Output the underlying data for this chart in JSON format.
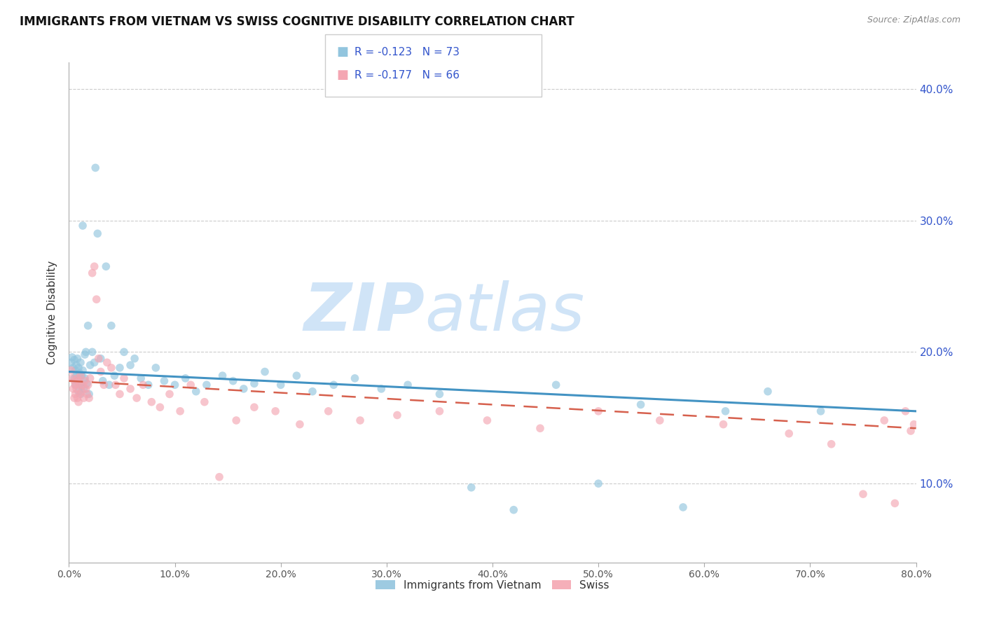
{
  "title": "IMMIGRANTS FROM VIETNAM VS SWISS COGNITIVE DISABILITY CORRELATION CHART",
  "source_text": "Source: ZipAtlas.com",
  "ylabel_left": "Cognitive Disability",
  "xlim": [
    0.0,
    0.8
  ],
  "ylim": [
    0.04,
    0.42
  ],
  "xticks": [
    0.0,
    0.1,
    0.2,
    0.3,
    0.4,
    0.5,
    0.6,
    0.7,
    0.8
  ],
  "yticks": [
    0.1,
    0.2,
    0.3,
    0.4
  ],
  "legend_r1": "-0.123",
  "legend_n1": "73",
  "legend_r2": "-0.177",
  "legend_n2": "66",
  "legend_label1": "Immigrants from Vietnam",
  "legend_label2": "Swiss",
  "blue_color": "#92c5de",
  "pink_color": "#f4a6b2",
  "blue_line_color": "#4393c3",
  "pink_line_color": "#d6604d",
  "legend_text_color": "#3355cc",
  "watermark_color": "#d0e4f7",
  "scatter_alpha": 0.65,
  "scatter_size": 70,
  "blue_scatter_x": [
    0.002,
    0.003,
    0.004,
    0.005,
    0.005,
    0.006,
    0.006,
    0.007,
    0.007,
    0.008,
    0.008,
    0.009,
    0.009,
    0.01,
    0.01,
    0.011,
    0.011,
    0.012,
    0.012,
    0.013,
    0.013,
    0.014,
    0.015,
    0.015,
    0.016,
    0.017,
    0.018,
    0.019,
    0.02,
    0.022,
    0.024,
    0.025,
    0.027,
    0.03,
    0.032,
    0.035,
    0.038,
    0.04,
    0.043,
    0.048,
    0.052,
    0.058,
    0.062,
    0.068,
    0.075,
    0.082,
    0.09,
    0.1,
    0.11,
    0.12,
    0.13,
    0.145,
    0.155,
    0.165,
    0.175,
    0.185,
    0.2,
    0.215,
    0.23,
    0.25,
    0.27,
    0.295,
    0.32,
    0.35,
    0.38,
    0.42,
    0.46,
    0.5,
    0.54,
    0.58,
    0.62,
    0.66,
    0.71
  ],
  "blue_scatter_y": [
    0.192,
    0.196,
    0.188,
    0.194,
    0.18,
    0.186,
    0.175,
    0.19,
    0.182,
    0.195,
    0.178,
    0.188,
    0.17,
    0.184,
    0.176,
    0.192,
    0.168,
    0.182,
    0.174,
    0.296,
    0.186,
    0.172,
    0.198,
    0.18,
    0.2,
    0.176,
    0.22,
    0.168,
    0.19,
    0.2,
    0.192,
    0.34,
    0.29,
    0.195,
    0.178,
    0.265,
    0.175,
    0.22,
    0.182,
    0.188,
    0.2,
    0.19,
    0.195,
    0.18,
    0.175,
    0.188,
    0.178,
    0.175,
    0.18,
    0.17,
    0.175,
    0.182,
    0.178,
    0.172,
    0.176,
    0.185,
    0.175,
    0.182,
    0.17,
    0.175,
    0.18,
    0.172,
    0.175,
    0.168,
    0.097,
    0.08,
    0.175,
    0.1,
    0.16,
    0.082,
    0.155,
    0.17,
    0.155
  ],
  "pink_scatter_x": [
    0.002,
    0.003,
    0.004,
    0.005,
    0.005,
    0.006,
    0.006,
    0.007,
    0.008,
    0.008,
    0.009,
    0.009,
    0.01,
    0.01,
    0.011,
    0.012,
    0.013,
    0.014,
    0.015,
    0.016,
    0.017,
    0.018,
    0.019,
    0.02,
    0.022,
    0.024,
    0.026,
    0.028,
    0.03,
    0.033,
    0.036,
    0.04,
    0.044,
    0.048,
    0.052,
    0.058,
    0.064,
    0.07,
    0.078,
    0.086,
    0.095,
    0.105,
    0.115,
    0.128,
    0.142,
    0.158,
    0.175,
    0.195,
    0.218,
    0.245,
    0.275,
    0.31,
    0.35,
    0.395,
    0.445,
    0.5,
    0.558,
    0.618,
    0.68,
    0.72,
    0.75,
    0.77,
    0.78,
    0.79,
    0.795,
    0.798
  ],
  "pink_scatter_y": [
    0.186,
    0.18,
    0.172,
    0.178,
    0.165,
    0.175,
    0.168,
    0.172,
    0.18,
    0.165,
    0.178,
    0.162,
    0.175,
    0.168,
    0.182,
    0.17,
    0.175,
    0.165,
    0.178,
    0.172,
    0.168,
    0.175,
    0.165,
    0.18,
    0.26,
    0.265,
    0.24,
    0.195,
    0.185,
    0.175,
    0.192,
    0.188,
    0.175,
    0.168,
    0.18,
    0.172,
    0.165,
    0.175,
    0.162,
    0.158,
    0.168,
    0.155,
    0.175,
    0.162,
    0.105,
    0.148,
    0.158,
    0.155,
    0.145,
    0.155,
    0.148,
    0.152,
    0.155,
    0.148,
    0.142,
    0.155,
    0.148,
    0.145,
    0.138,
    0.13,
    0.092,
    0.148,
    0.085,
    0.155,
    0.14,
    0.145
  ]
}
